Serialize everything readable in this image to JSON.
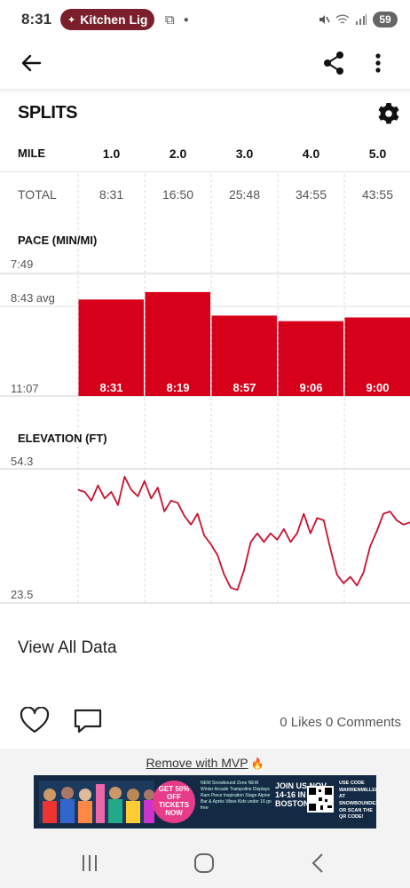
{
  "status_bar": {
    "time": "8:31",
    "notification_label": "Kitchen Lig",
    "battery": "59"
  },
  "splits": {
    "title": "SPLITS",
    "mile_label": "MILE",
    "total_label": "TOTAL",
    "columns": [
      {
        "mile": "1.0",
        "total": "8:31"
      },
      {
        "mile": "2.0",
        "total": "16:50"
      },
      {
        "mile": "3.0",
        "total": "25:48"
      },
      {
        "mile": "4.0",
        "total": "34:55"
      },
      {
        "mile": "5.0",
        "total": "43:55"
      }
    ]
  },
  "chart_data": [
    {
      "type": "bar",
      "title": "PACE (MIN/MI)",
      "categories": [
        "1.0",
        "2.0",
        "3.0",
        "4.0",
        "5.0"
      ],
      "values": [
        511,
        499,
        537,
        546,
        540
      ],
      "data_labels": [
        "8:31",
        "8:19",
        "8:57",
        "9:06",
        "9:00"
      ],
      "y_tick_labels": {
        "top": "7:49",
        "avg": "8:43 avg",
        "bottom": "11:07"
      },
      "ylim": [
        667,
        469
      ],
      "avg_value": 523,
      "bar_color": "#d7001b"
    },
    {
      "type": "line",
      "title": "ELEVATION (FT)",
      "y_tick_labels": {
        "top": "54.3",
        "bottom": "23.5"
      },
      "ylim": [
        23.5,
        54.3
      ],
      "xlim": [
        0.0,
        5.0
      ],
      "line_color": "#c8102e",
      "x": [
        0.0,
        0.1,
        0.2,
        0.3,
        0.4,
        0.5,
        0.6,
        0.7,
        0.8,
        0.9,
        1.0,
        1.1,
        1.2,
        1.3,
        1.4,
        1.5,
        1.6,
        1.7,
        1.8,
        1.9,
        2.0,
        2.1,
        2.2,
        2.3,
        2.4,
        2.5,
        2.6,
        2.7,
        2.8,
        2.9,
        3.0,
        3.1,
        3.2,
        3.3,
        3.4,
        3.5,
        3.6,
        3.7,
        3.8,
        3.9,
        4.0,
        4.1,
        4.2,
        4.3,
        4.4,
        4.5,
        4.6,
        4.7,
        4.8,
        4.9,
        5.0
      ],
      "values": [
        49.5,
        49.0,
        47.0,
        50.5,
        47.5,
        49.0,
        46.0,
        52.5,
        49.5,
        48.0,
        51.5,
        47.5,
        50.0,
        44.5,
        47.0,
        46.5,
        43.5,
        41.5,
        44.0,
        39.0,
        37.0,
        34.5,
        30.0,
        27.0,
        26.5,
        31.0,
        37.5,
        39.5,
        37.5,
        39.5,
        38.0,
        40.5,
        37.5,
        39.5,
        44.0,
        39.5,
        43.0,
        42.5,
        36.0,
        30.0,
        28.0,
        29.5,
        27.5,
        30.5,
        36.5,
        40.0,
        44.0,
        44.5,
        42.5,
        41.5,
        42.0
      ]
    }
  ],
  "view_all_label": "View All Data",
  "social": {
    "counts": "0 Likes 0 Comments"
  },
  "ad": {
    "remove_label": "Remove with MVP",
    "circle_text": "GET 50% OFF TICKETS NOW",
    "join_text": "JOIN US NOV 14-16 IN BOSTON",
    "code_text": "USE CODE WARRENMILLER AT SNOWBOUNDEXPO.COM OR SCAN THE QR CODE!",
    "list_text": "NEW Snowbound Zone NEW Winter Arcade Trampoline Displays Ram Piece Inspiration Stage Alpine Bar & Après Vibes Kids under 16 go free"
  }
}
